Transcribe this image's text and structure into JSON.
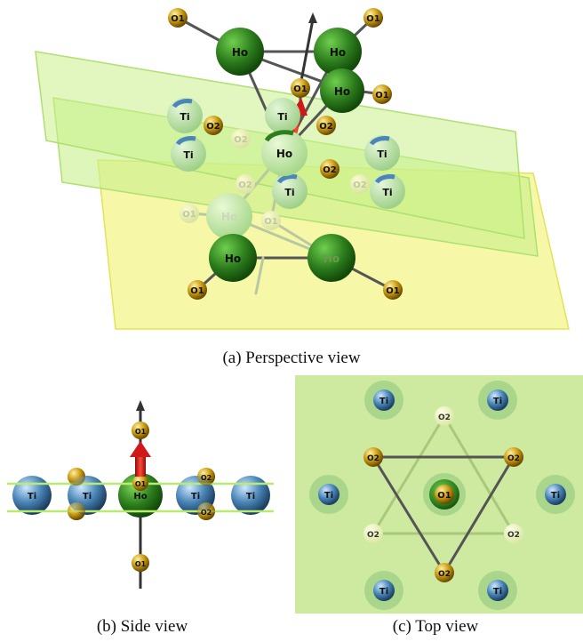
{
  "captions": {
    "perspective": "(a) Perspective view",
    "side": "(b) Side view",
    "top": "(c) Top view"
  },
  "labels": {
    "ho": "Ho",
    "ti": "Ti",
    "o1": "O1",
    "o2": "O2"
  },
  "colors": {
    "ho": "#2e7d1e",
    "ti": "#4a86b8",
    "o_atom": "#c99a10",
    "plane_green": "#c8f08a",
    "plane_yellow": "#f2f27a",
    "arrow_red": "#d01818",
    "top_bg": "#cdeaa0"
  }
}
